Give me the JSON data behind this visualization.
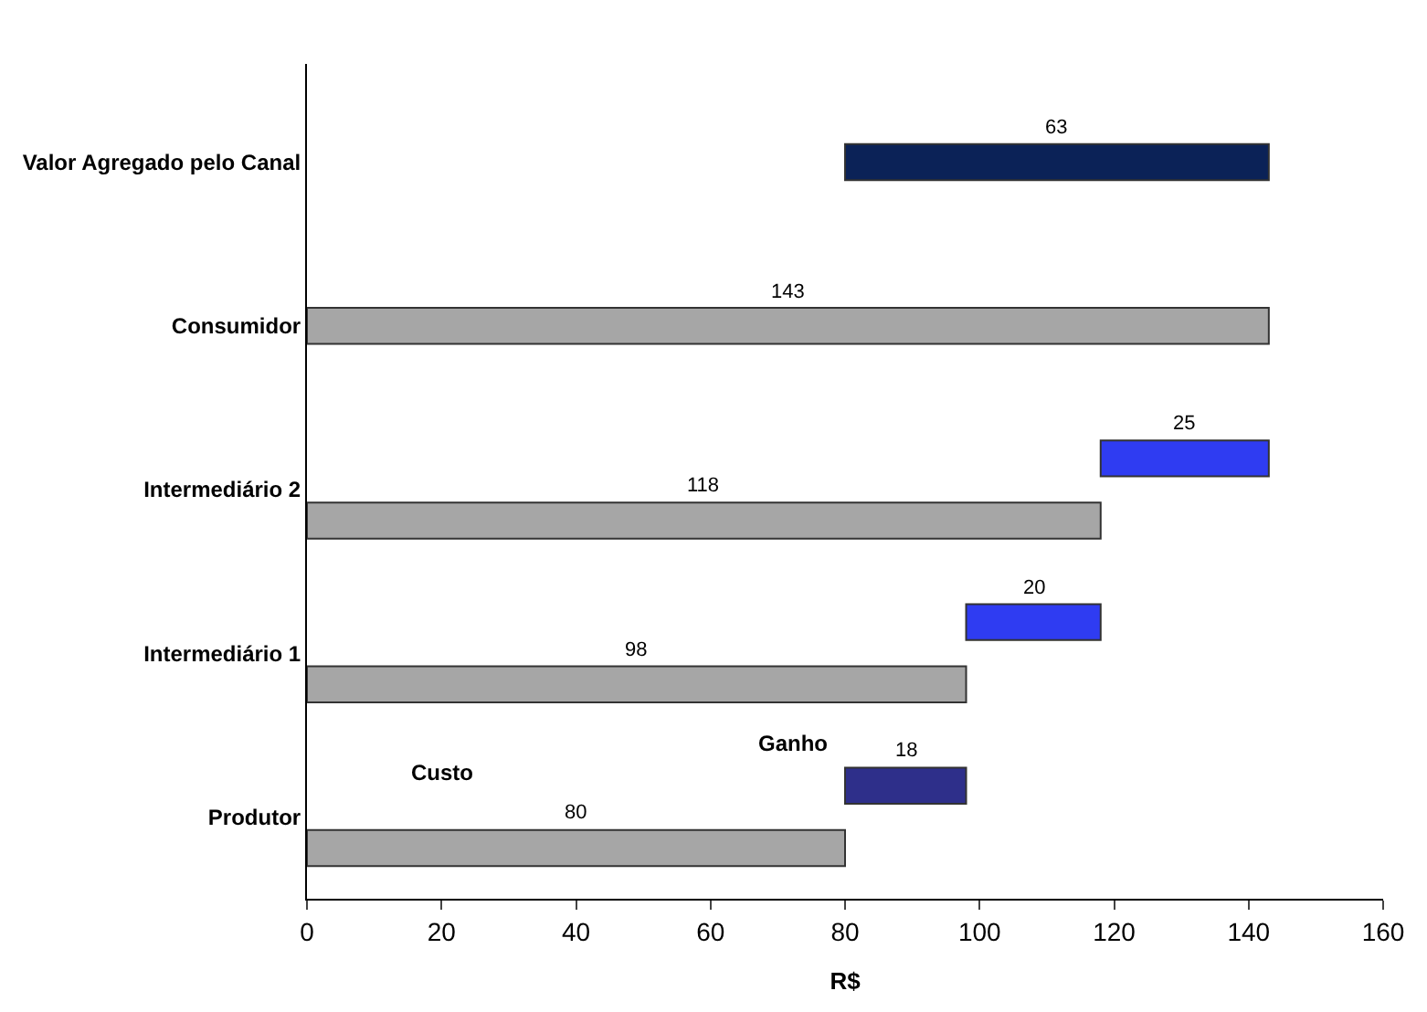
{
  "chart_data": {
    "type": "bar",
    "orientation": "horizontal",
    "categories": [
      "Valor Agregado pelo Canal",
      "Consumidor",
      "Intermediário 2",
      "Intermediário 1",
      "Produtor"
    ],
    "series": [
      {
        "name": "Custo",
        "color": "#a6a6a6",
        "values": [
          null,
          143,
          118,
          98,
          80
        ]
      },
      {
        "name": "Ganho",
        "colors": [
          "#0b2257",
          null,
          "#2f3cf2",
          "#2f3cf2",
          "#2e2f8a"
        ],
        "values": [
          63,
          null,
          25,
          20,
          18
        ],
        "base": [
          80,
          null,
          118,
          98,
          80
        ]
      }
    ],
    "xlabel": "R$",
    "xlim": [
      0,
      160
    ],
    "xticks": [
      0,
      20,
      40,
      60,
      80,
      100,
      120,
      140,
      160
    ],
    "data_labels": true
  }
}
